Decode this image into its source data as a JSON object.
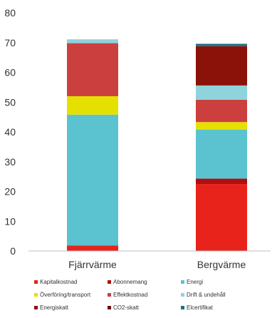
{
  "chart_data": {
    "type": "bar",
    "stacked": true,
    "categories": [
      "Fjärrvärme",
      "Bergvärme"
    ],
    "ylim": [
      0,
      80
    ],
    "yticks": [
      0,
      10,
      20,
      30,
      40,
      50,
      60,
      70,
      80
    ],
    "grid": false,
    "legend_position": "bottom",
    "series": [
      {
        "name": "Kapitalkostnad",
        "color": "#e8231b",
        "values": [
          1.8,
          22.5
        ]
      },
      {
        "name": "Abonnemang",
        "color": "#b00f0f",
        "values": [
          0,
          1.8
        ]
      },
      {
        "name": "Energi",
        "color": "#5bc2cf",
        "values": [
          44.0,
          16.5
        ]
      },
      {
        "name": "Överföring/transport",
        "color": "#e6e000",
        "values": [
          6.2,
          2.5
        ]
      },
      {
        "name": "Effektkostnad",
        "color": "#cb3f3f",
        "values": [
          17.8,
          7.5
        ]
      },
      {
        "name": "Drift & undehåll",
        "color": "#8fd3dc",
        "values": [
          1.3,
          4.8
        ]
      },
      {
        "name": "Energiskatt",
        "color": "#8b1209",
        "values": [
          0,
          13.2
        ]
      },
      {
        "name": "CO2-skatt",
        "color": "#6d0b0b",
        "values": [
          0,
          0
        ]
      },
      {
        "name": "Elcertifikat",
        "color": "#1f7080",
        "values": [
          0,
          0.8
        ]
      }
    ]
  }
}
